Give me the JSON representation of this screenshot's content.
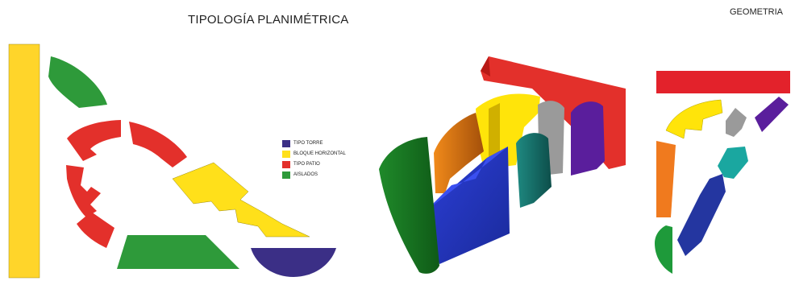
{
  "title_main": "TIPOLOGÍA PLANIMÉTRICA",
  "title_right": "GEOMETRIA",
  "legend": [
    {
      "label": "TIPO TORRE",
      "color": "#3b2f86"
    },
    {
      "label": "BLOQUE HORIZONTAL",
      "color": "#ffe01a"
    },
    {
      "label": "TIPO PATIO",
      "color": "#e3302b"
    },
    {
      "label": "AISLADOS",
      "color": "#2e9a3a"
    }
  ],
  "colors": {
    "yellow": "#ffd52a",
    "green": "#2e9a3a",
    "red": "#e3302b",
    "purple": "#3b2f86",
    "orange": "#f07a1e",
    "blue": "#2a3ea8",
    "teal": "#1aa7a0",
    "grey": "#9a9a9a",
    "violet": "#6a2aa6"
  }
}
